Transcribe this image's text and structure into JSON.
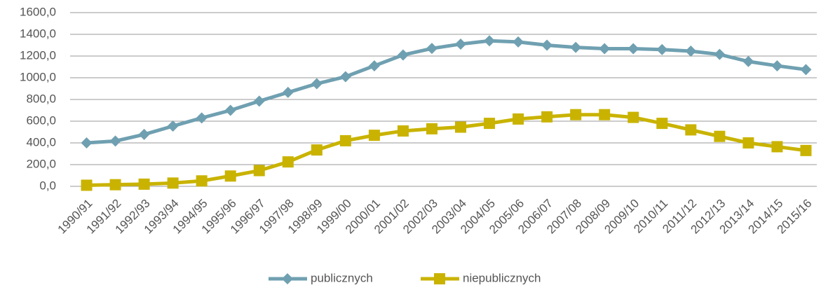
{
  "chart_data": {
    "type": "line",
    "categories": [
      "1990/91",
      "1991/92",
      "1992/93",
      "1993/94",
      "1994/95",
      "1995/96",
      "1996/97",
      "1997/98",
      "1998/99",
      "1999/00",
      "2000/01",
      "2001/02",
      "2002/03",
      "2003/04",
      "2004/05",
      "2005/06",
      "2006/07",
      "2007/08",
      "2008/09",
      "2009/10",
      "2010/11",
      "2011/12",
      "2012/13",
      "2013/14",
      "2014/15",
      "2015/16"
    ],
    "series": [
      {
        "name": "publicznych",
        "color": "#6fa0b1",
        "marker": "diamond",
        "values": [
          400,
          417,
          478,
          555,
          630,
          700,
          785,
          865,
          945,
          1010,
          1110,
          1210,
          1270,
          1310,
          1340,
          1330,
          1300,
          1280,
          1268,
          1268,
          1260,
          1245,
          1215,
          1150,
          1110,
          1075
        ]
      },
      {
        "name": "niepublicznych",
        "color": "#c9b300",
        "marker": "square",
        "values": [
          10,
          15,
          20,
          30,
          50,
          95,
          145,
          225,
          335,
          420,
          470,
          510,
          530,
          545,
          580,
          620,
          640,
          660,
          660,
          635,
          580,
          520,
          460,
          400,
          365,
          330
        ]
      }
    ],
    "ylim": [
      0,
      1600
    ],
    "yticks": [
      {
        "value": 0,
        "label": "0,0"
      },
      {
        "value": 200,
        "label": "200,0"
      },
      {
        "value": 400,
        "label": "400,0"
      },
      {
        "value": 600,
        "label": "600,0"
      },
      {
        "value": 800,
        "label": "800,0"
      },
      {
        "value": 1000,
        "label": "1000,0"
      },
      {
        "value": 1200,
        "label": "1200,0"
      },
      {
        "value": 1400,
        "label": "1400,0"
      },
      {
        "value": 1600,
        "label": "1600,0"
      }
    ],
    "grid": true,
    "legend": "bottom"
  }
}
